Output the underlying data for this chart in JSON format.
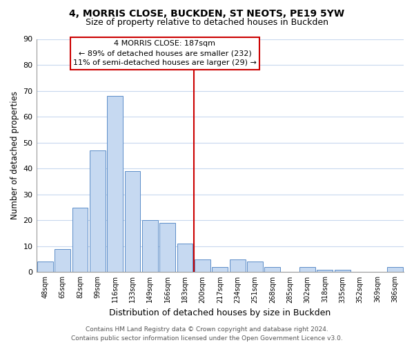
{
  "title": "4, MORRIS CLOSE, BUCKDEN, ST NEOTS, PE19 5YW",
  "subtitle": "Size of property relative to detached houses in Buckden",
  "xlabel": "Distribution of detached houses by size in Buckden",
  "ylabel": "Number of detached properties",
  "bar_labels": [
    "48sqm",
    "65sqm",
    "82sqm",
    "99sqm",
    "116sqm",
    "133sqm",
    "149sqm",
    "166sqm",
    "183sqm",
    "200sqm",
    "217sqm",
    "234sqm",
    "251sqm",
    "268sqm",
    "285sqm",
    "302sqm",
    "318sqm",
    "335sqm",
    "352sqm",
    "369sqm",
    "386sqm"
  ],
  "bar_values": [
    4,
    9,
    25,
    47,
    68,
    39,
    20,
    19,
    11,
    5,
    2,
    5,
    4,
    2,
    0,
    2,
    1,
    1,
    0,
    0,
    2
  ],
  "bar_color": "#c6d9f1",
  "bar_edge_color": "#5b8dc8",
  "vline_color": "#cc0000",
  "ylim": [
    0,
    90
  ],
  "yticks": [
    0,
    10,
    20,
    30,
    40,
    50,
    60,
    70,
    80,
    90
  ],
  "annotation_title": "4 MORRIS CLOSE: 187sqm",
  "annotation_line1": "← 89% of detached houses are smaller (232)",
  "annotation_line2": "11% of semi-detached houses are larger (29) →",
  "annotation_box_color": "#ffffff",
  "annotation_box_edge": "#cc0000",
  "footer_line1": "Contains HM Land Registry data © Crown copyright and database right 2024.",
  "footer_line2": "Contains public sector information licensed under the Open Government Licence v3.0.",
  "background_color": "#ffffff",
  "grid_color": "#c8d8ee"
}
